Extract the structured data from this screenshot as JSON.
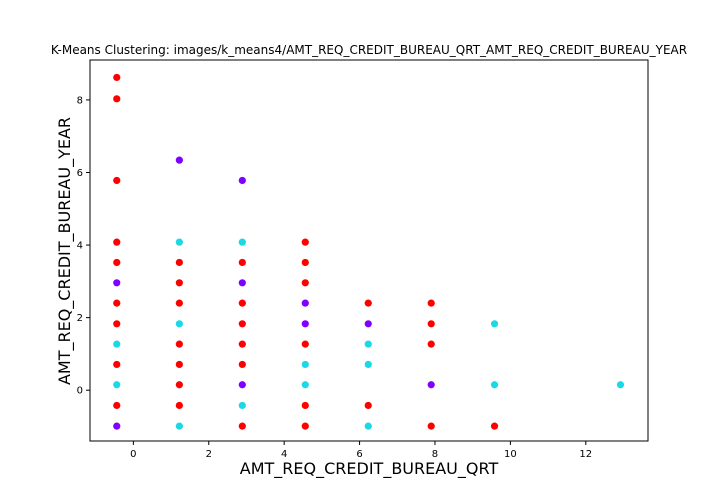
{
  "chart_data": {
    "type": "scatter",
    "title": "K-Means Clustering: images/k_means4/AMT_REQ_CREDIT_BUREAU_QRT_AMT_REQ_CREDIT_BUREAU_YEAR",
    "xlabel": "AMT_REQ_CREDIT_BUREAU_QRT",
    "ylabel": "AMT_REQ_CREDIT_BUREAU_YEAR",
    "xlim": [
      -1.15,
      13.65
    ],
    "ylim": [
      -1.4,
      9.1
    ],
    "xticks": [
      0,
      2,
      4,
      6,
      8,
      10,
      12
    ],
    "yticks": [
      0,
      2,
      4,
      6,
      8
    ],
    "grid": false,
    "legend": "none",
    "cluster_colors": [
      "#8000ff",
      "#1ad8e6",
      "#ff0000"
    ],
    "points": [
      {
        "x": -0.44,
        "y": 8.62,
        "cluster": 2
      },
      {
        "x": -0.44,
        "y": 8.03,
        "cluster": 2
      },
      {
        "x": -0.44,
        "y": 5.78,
        "cluster": 2
      },
      {
        "x": -0.44,
        "y": 4.08,
        "cluster": 2
      },
      {
        "x": -0.44,
        "y": 3.52,
        "cluster": 2
      },
      {
        "x": -0.44,
        "y": 2.96,
        "cluster": 0
      },
      {
        "x": -0.44,
        "y": 2.4,
        "cluster": 2
      },
      {
        "x": -0.44,
        "y": 1.83,
        "cluster": 2
      },
      {
        "x": -0.44,
        "y": 1.27,
        "cluster": 1
      },
      {
        "x": -0.44,
        "y": 0.71,
        "cluster": 2
      },
      {
        "x": -0.44,
        "y": 0.15,
        "cluster": 1
      },
      {
        "x": -0.44,
        "y": -0.42,
        "cluster": 2
      },
      {
        "x": -0.44,
        "y": -0.99,
        "cluster": 0
      },
      {
        "x": 1.22,
        "y": 6.34,
        "cluster": 0
      },
      {
        "x": 1.22,
        "y": 4.08,
        "cluster": 1
      },
      {
        "x": 1.22,
        "y": 3.52,
        "cluster": 2
      },
      {
        "x": 1.22,
        "y": 2.96,
        "cluster": 2
      },
      {
        "x": 1.22,
        "y": 2.4,
        "cluster": 2
      },
      {
        "x": 1.22,
        "y": 1.83,
        "cluster": 1
      },
      {
        "x": 1.22,
        "y": 1.27,
        "cluster": 2
      },
      {
        "x": 1.22,
        "y": 0.71,
        "cluster": 2
      },
      {
        "x": 1.22,
        "y": 0.15,
        "cluster": 2
      },
      {
        "x": 1.22,
        "y": -0.42,
        "cluster": 2
      },
      {
        "x": 1.22,
        "y": -0.99,
        "cluster": 1
      },
      {
        "x": 2.89,
        "y": 5.78,
        "cluster": 0
      },
      {
        "x": 2.89,
        "y": 4.08,
        "cluster": 1
      },
      {
        "x": 2.89,
        "y": 3.52,
        "cluster": 2
      },
      {
        "x": 2.89,
        "y": 2.96,
        "cluster": 0
      },
      {
        "x": 2.89,
        "y": 2.4,
        "cluster": 2
      },
      {
        "x": 2.89,
        "y": 1.83,
        "cluster": 2
      },
      {
        "x": 2.89,
        "y": 1.27,
        "cluster": 2
      },
      {
        "x": 2.89,
        "y": 0.71,
        "cluster": 2
      },
      {
        "x": 2.89,
        "y": 0.15,
        "cluster": 0
      },
      {
        "x": 2.89,
        "y": -0.42,
        "cluster": 1
      },
      {
        "x": 2.89,
        "y": -0.99,
        "cluster": 2
      },
      {
        "x": 4.56,
        "y": 4.08,
        "cluster": 2
      },
      {
        "x": 4.56,
        "y": 3.52,
        "cluster": 2
      },
      {
        "x": 4.56,
        "y": 2.96,
        "cluster": 2
      },
      {
        "x": 4.56,
        "y": 2.4,
        "cluster": 0
      },
      {
        "x": 4.56,
        "y": 1.83,
        "cluster": 0
      },
      {
        "x": 4.56,
        "y": 1.27,
        "cluster": 2
      },
      {
        "x": 4.56,
        "y": 0.71,
        "cluster": 1
      },
      {
        "x": 4.56,
        "y": 0.15,
        "cluster": 1
      },
      {
        "x": 4.56,
        "y": -0.42,
        "cluster": 2
      },
      {
        "x": 4.56,
        "y": -0.99,
        "cluster": 2
      },
      {
        "x": 6.23,
        "y": 2.4,
        "cluster": 2
      },
      {
        "x": 6.23,
        "y": 1.83,
        "cluster": 0
      },
      {
        "x": 6.23,
        "y": 1.27,
        "cluster": 1
      },
      {
        "x": 6.23,
        "y": 0.71,
        "cluster": 1
      },
      {
        "x": 6.23,
        "y": -0.42,
        "cluster": 2
      },
      {
        "x": 6.23,
        "y": -0.99,
        "cluster": 1
      },
      {
        "x": 7.9,
        "y": 2.4,
        "cluster": 2
      },
      {
        "x": 7.9,
        "y": 1.83,
        "cluster": 2
      },
      {
        "x": 7.9,
        "y": 1.27,
        "cluster": 2
      },
      {
        "x": 7.9,
        "y": 0.15,
        "cluster": 0
      },
      {
        "x": 7.9,
        "y": -0.99,
        "cluster": 2
      },
      {
        "x": 9.58,
        "y": 1.83,
        "cluster": 1
      },
      {
        "x": 9.58,
        "y": 0.15,
        "cluster": 1
      },
      {
        "x": 9.58,
        "y": -0.99,
        "cluster": 2
      },
      {
        "x": 12.92,
        "y": 0.15,
        "cluster": 1
      }
    ]
  }
}
